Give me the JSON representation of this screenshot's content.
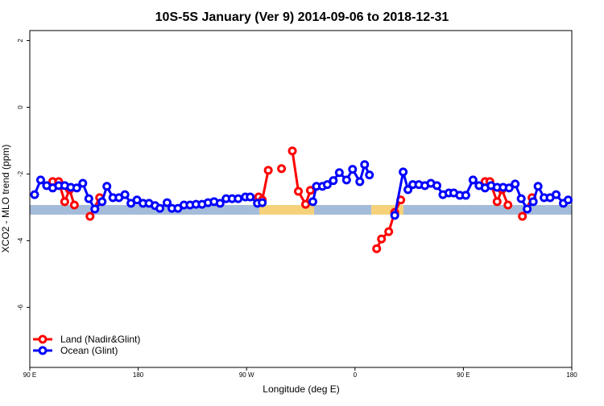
{
  "chart_data": {
    "type": "line",
    "title": "10S-5S January (Ver 9)   2014-09-06 to 2018-12-31",
    "x_label": "Longitude (deg E)",
    "y_label": "XCO2 - MLO trend (ppm)",
    "xlim": [
      90,
      540
    ],
    "ylim": [
      -7.8,
      2.3
    ],
    "xticks": [
      {
        "value": 90,
        "label": "90 E"
      },
      180,
      {
        "value": 270,
        "label": "90 W"
      },
      {
        "value": 360,
        "label": "0"
      },
      {
        "value": 450,
        "label": "90 E"
      },
      {
        "value": 540,
        "label": "180"
      }
    ],
    "yticks": [
      -6,
      -4,
      -2,
      0,
      2
    ],
    "legend": "bottom-left",
    "series": [
      {
        "name": "Land (Nadir&Glint)",
        "color": "#ff0000",
        "x": [
          109,
          114,
          119,
          123,
          127,
          133,
          140,
          148,
          200,
          280,
          283,
          288,
          294,
          299,
          304,
          308,
          313,
          319,
          323,
          350,
          378,
          382,
          388,
          393,
          398,
          430,
          468,
          472,
          478,
          482,
          487,
          492,
          499,
          507
        ],
        "values": [
          -2.23,
          -2.23,
          -2.83,
          -2.47,
          -2.93,
          null,
          -3.27,
          -2.71,
          null,
          -2.69,
          -2.78,
          -1.89,
          null,
          -1.84,
          null,
          -1.31,
          -2.52,
          -2.91,
          -2.49,
          null,
          -4.24,
          -3.95,
          -3.73,
          -3.15,
          -2.78,
          null,
          -2.23,
          -2.23,
          -2.83,
          -2.47,
          -2.93,
          null,
          -3.27,
          -2.71
        ]
      },
      {
        "name": "Ocean (Glint)",
        "color": "#0000ff",
        "x": [
          94,
          99,
          104,
          109,
          114,
          119,
          124,
          129,
          134,
          139,
          144,
          150,
          154,
          159,
          164,
          169,
          174,
          179,
          184,
          189,
          194,
          198,
          204,
          208,
          213,
          218,
          223,
          228,
          233,
          238,
          243,
          248,
          253,
          258,
          263,
          269,
          273,
          279,
          283,
          300,
          325,
          328,
          333,
          337,
          342,
          347,
          353,
          358,
          364,
          368,
          372,
          380,
          393,
          400,
          404,
          408,
          413,
          418,
          423,
          428,
          433,
          438,
          442,
          447,
          452,
          458,
          463,
          468,
          473,
          478,
          483,
          488,
          493,
          498,
          503,
          508,
          512,
          517,
          522,
          527,
          533,
          537
        ],
        "values": [
          -2.62,
          -2.18,
          -2.35,
          -2.42,
          -2.35,
          -2.35,
          -2.4,
          -2.42,
          -2.28,
          -2.74,
          -3.05,
          -2.83,
          -2.37,
          -2.71,
          -2.71,
          -2.62,
          -2.88,
          -2.78,
          -2.88,
          -2.88,
          -2.95,
          -3.03,
          -2.86,
          -3.03,
          -3.03,
          -2.93,
          -2.93,
          -2.91,
          -2.91,
          -2.86,
          -2.83,
          -2.88,
          -2.74,
          -2.74,
          -2.74,
          -2.69,
          -2.69,
          -2.88,
          -2.86,
          null,
          -2.83,
          -2.37,
          -2.37,
          -2.32,
          -2.2,
          -1.96,
          -2.18,
          -1.86,
          -2.23,
          -1.72,
          -2.03,
          null,
          -3.24,
          -1.94,
          -2.47,
          -2.32,
          -2.32,
          -2.35,
          -2.28,
          -2.35,
          -2.62,
          -2.57,
          -2.57,
          -2.64,
          -2.64,
          -2.18,
          -2.35,
          -2.42,
          -2.35,
          -2.4,
          -2.4,
          -2.42,
          -2.3,
          -2.74,
          -3.05,
          -2.83,
          -2.37,
          -2.71,
          -2.71,
          -2.62,
          -2.88,
          -2.78
        ]
      }
    ]
  }
}
